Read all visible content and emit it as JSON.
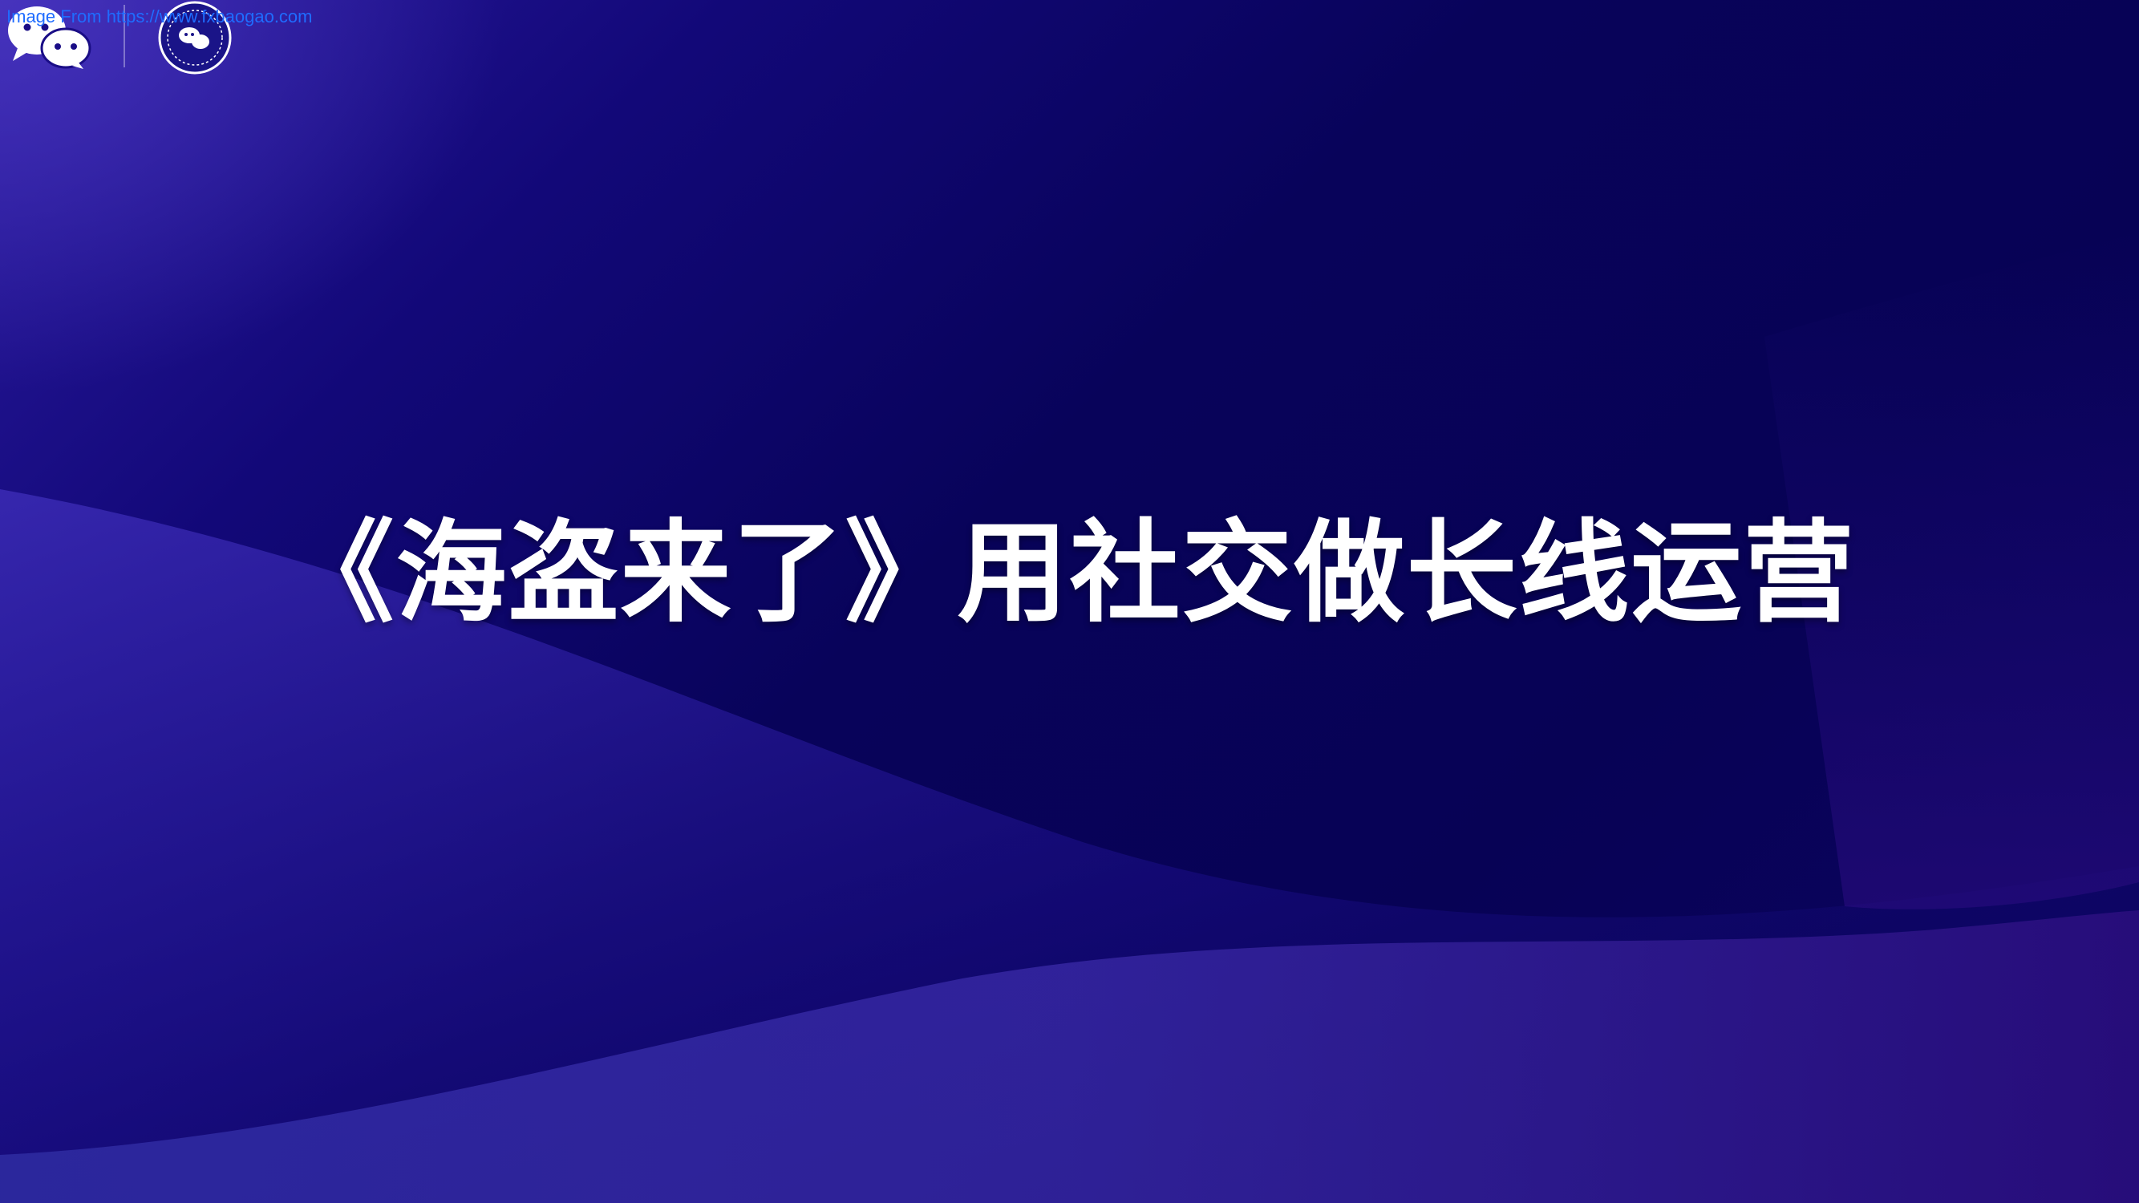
{
  "watermark": {
    "text": "Image From https://www.fxbaogao.com"
  },
  "header": {
    "logo_icon": "wechat-logo-icon",
    "seal_icon": "round-seal-logo-icon"
  },
  "slide": {
    "title": "《海盗来了》用社交做长线运营"
  },
  "colors": {
    "background_dark": "#070255",
    "background_light": "#2a1a9e",
    "title": "#ffffff",
    "watermark": "#1f6cff"
  }
}
